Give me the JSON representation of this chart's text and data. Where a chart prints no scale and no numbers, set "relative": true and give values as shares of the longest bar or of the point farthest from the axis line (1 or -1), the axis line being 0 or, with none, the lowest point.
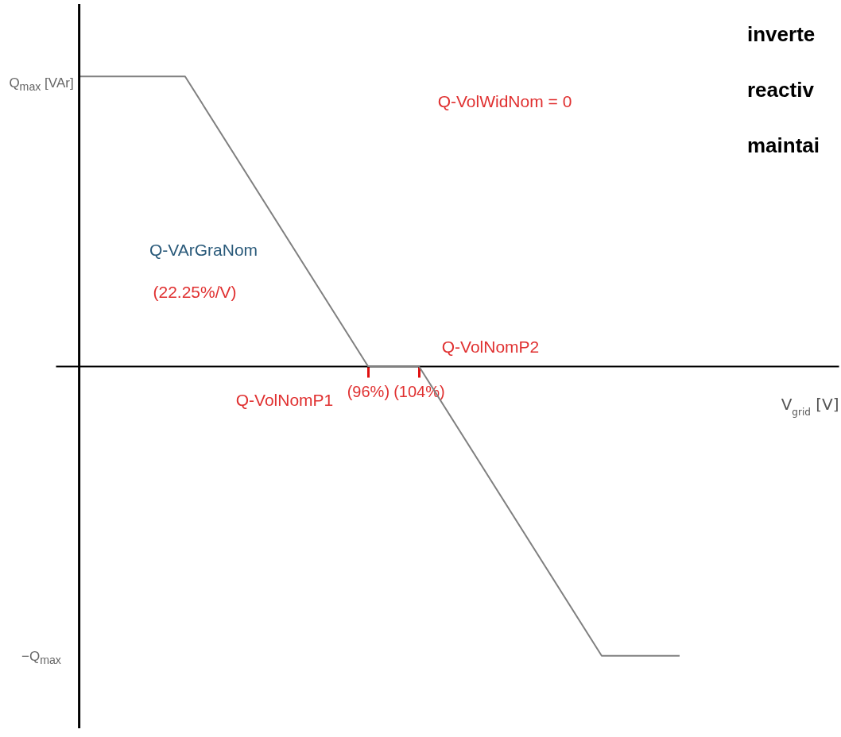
{
  "chart_data": {
    "type": "line",
    "xlabel": "V$_{grid}$ [V]",
    "x": [
      50.6,
      67.25,
      96,
      104,
      132.75,
      145
    ],
    "series": [
      {
        "color": "#808080",
        "values": [
          1,
          1,
          0,
          0,
          -1,
          -1
        ]
      }
    ],
    "xlim": [
      46.9,
      170
    ],
    "relative": true,
    "xticks": [
      {
        "value": 96,
        "label": "(96%)"
      },
      {
        "value": 104,
        "label": "(104%)"
      }
    ],
    "ref_lines": [
      {
        "axis": "x",
        "value": 50.6,
        "color": "#000000"
      }
    ],
    "grid": false,
    "marker": "none",
    "line_style": "solid",
    "annotations": [
      "Q-VolWidNom = 0",
      "Q-VArGraNom",
      "(22.25%/V)",
      "Q-VolNomP1",
      "Q-VolNomP2",
      "Q$_{max}$ [VAr]",
      "−Q$_{max}$",
      "inverte",
      "reactiv",
      "maintai"
    ]
  }
}
